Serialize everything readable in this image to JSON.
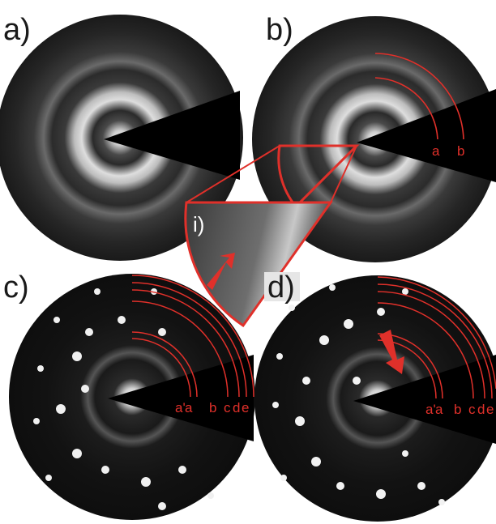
{
  "panels": {
    "a": {
      "label": "a)"
    },
    "b": {
      "label": "b)",
      "ring_labels": [
        "a",
        "b"
      ]
    },
    "c": {
      "label": "c)",
      "ring_labels": [
        "a'",
        "a",
        "b",
        "c",
        "d",
        "e"
      ]
    },
    "d": {
      "label": "d)",
      "ring_labels": [
        "a'",
        "a",
        "b",
        "c",
        "d",
        "e"
      ]
    }
  },
  "inset": {
    "label": "i)"
  },
  "colors": {
    "annotation_red": "#e0302a",
    "pattern_background": "#0a0a0a",
    "beam_stop": "#000000",
    "ring_glow": "#e8e8e8"
  }
}
